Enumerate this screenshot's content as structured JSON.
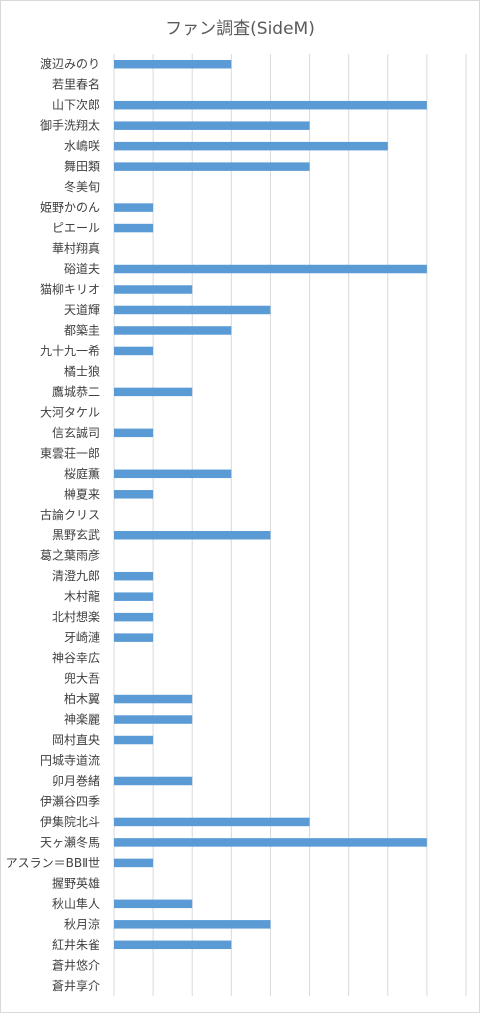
{
  "chart_data": {
    "type": "bar",
    "orientation": "horizontal",
    "title": "ファン調査(SideM)",
    "xlabel": "",
    "ylabel": "",
    "xlim": [
      0,
      9
    ],
    "grid": true,
    "legend": "none",
    "bar_color": "#5b9bd5",
    "categories": [
      "渡辺みのり",
      "若里春名",
      "山下次郎",
      "御手洗翔太",
      "水嶋咲",
      "舞田類",
      "冬美旬",
      "姫野かのん",
      "ピエール",
      "華村翔真",
      "硲道夫",
      "猫柳キリオ",
      "天道輝",
      "都築圭",
      "九十九一希",
      "橘士狼",
      "鷹城恭二",
      "大河タケル",
      "信玄誠司",
      "東雲荘一郎",
      "桜庭薫",
      "榊夏来",
      "古論クリス",
      "黒野玄武",
      "葛之葉雨彦",
      "清澄九郎",
      "木村龍",
      "北村想楽",
      "牙崎漣",
      "神谷幸広",
      "兜大吾",
      "柏木翼",
      "神楽麗",
      "岡村直央",
      "円城寺道流",
      "卯月巻緒",
      "伊瀬谷四季",
      "伊集院北斗",
      "天ヶ瀬冬馬",
      "アスラン＝BBⅡ世",
      "握野英雄",
      "秋山隼人",
      "秋月涼",
      "紅井朱雀",
      "蒼井悠介",
      "蒼井享介"
    ],
    "values": [
      3,
      0,
      8,
      5,
      7,
      5,
      0,
      1,
      1,
      0,
      8,
      2,
      4,
      3,
      1,
      0,
      2,
      0,
      1,
      0,
      3,
      1,
      0,
      4,
      0,
      1,
      1,
      1,
      1,
      0,
      0,
      2,
      2,
      1,
      0,
      2,
      0,
      5,
      8,
      1,
      0,
      2,
      4,
      3,
      0,
      0
    ]
  }
}
